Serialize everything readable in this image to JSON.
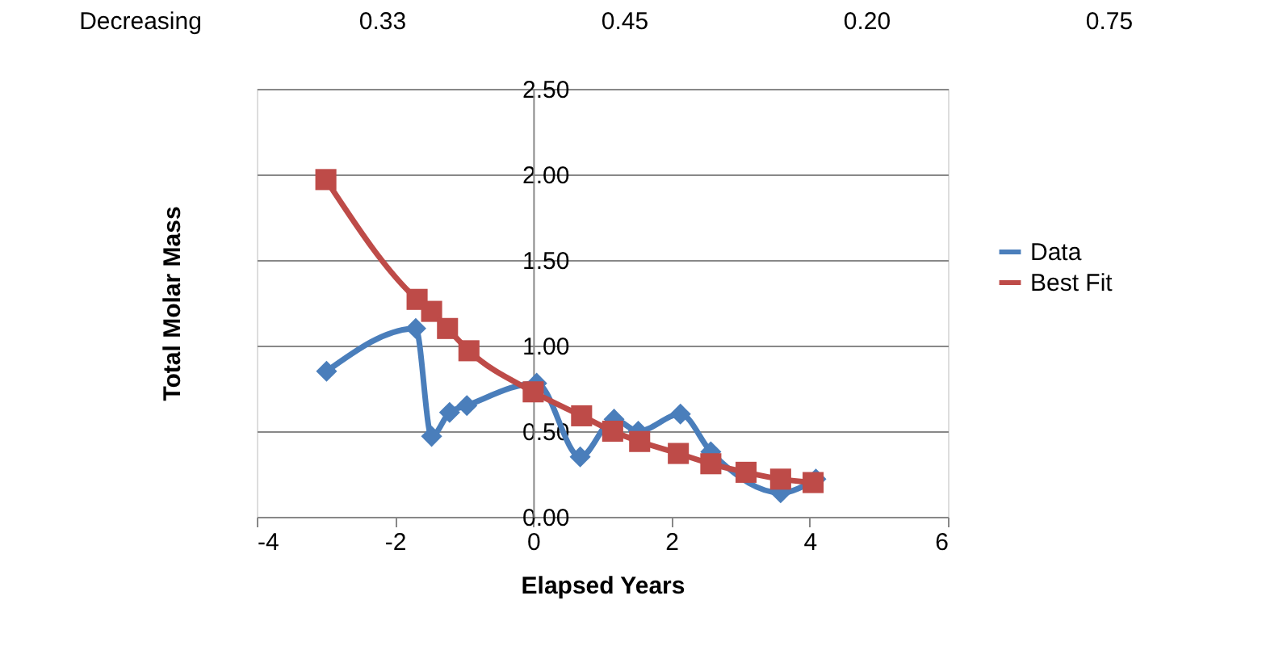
{
  "chart_data": {
    "type": "line",
    "xlabel": "Elapsed Years",
    "ylabel": "Total Molar Mass",
    "annotations": [
      "Decreasing",
      "0.33",
      "0.45",
      "0.20",
      "0.75"
    ],
    "series": [
      {
        "name": "Data",
        "color": "#4a7ebb",
        "marker": "diamond",
        "x": [
          -2.99,
          -1.7,
          -1.47,
          -1.21,
          -0.96,
          0.05,
          0.68,
          1.17,
          1.52,
          2.13,
          2.57,
          3.58,
          4.09
        ],
        "values": [
          0.85,
          1.1,
          0.47,
          0.61,
          0.65,
          0.78,
          0.35,
          0.57,
          0.5,
          0.6,
          0.38,
          0.14,
          0.22
        ]
      },
      {
        "name": "Best Fit",
        "color": "#be4b48",
        "marker": "square",
        "x": [
          -3.0,
          -1.68,
          -1.47,
          -1.24,
          -0.93,
          0.0,
          0.7,
          1.15,
          1.54,
          2.1,
          2.57,
          3.08,
          3.58,
          4.05
        ],
        "values": [
          1.97,
          1.27,
          1.2,
          1.1,
          0.97,
          0.73,
          0.59,
          0.5,
          0.44,
          0.37,
          0.31,
          0.26,
          0.22,
          0.2
        ]
      }
    ],
    "xlim": [
      -4,
      6
    ],
    "xticks": [
      -4,
      -2,
      0,
      2,
      4,
      6
    ],
    "ylim": [
      0,
      2.5
    ],
    "yticks": [
      {
        "value": 0,
        "label": "0.00"
      },
      {
        "value": 0.5,
        "label": "0.50"
      },
      {
        "value": 1,
        "label": "1.00"
      },
      {
        "value": 1.5,
        "label": "1.50"
      },
      {
        "value": 2,
        "label": "2.00"
      },
      {
        "value": 2.5,
        "label": "2.50"
      }
    ],
    "grid": "y",
    "legend": "right"
  }
}
